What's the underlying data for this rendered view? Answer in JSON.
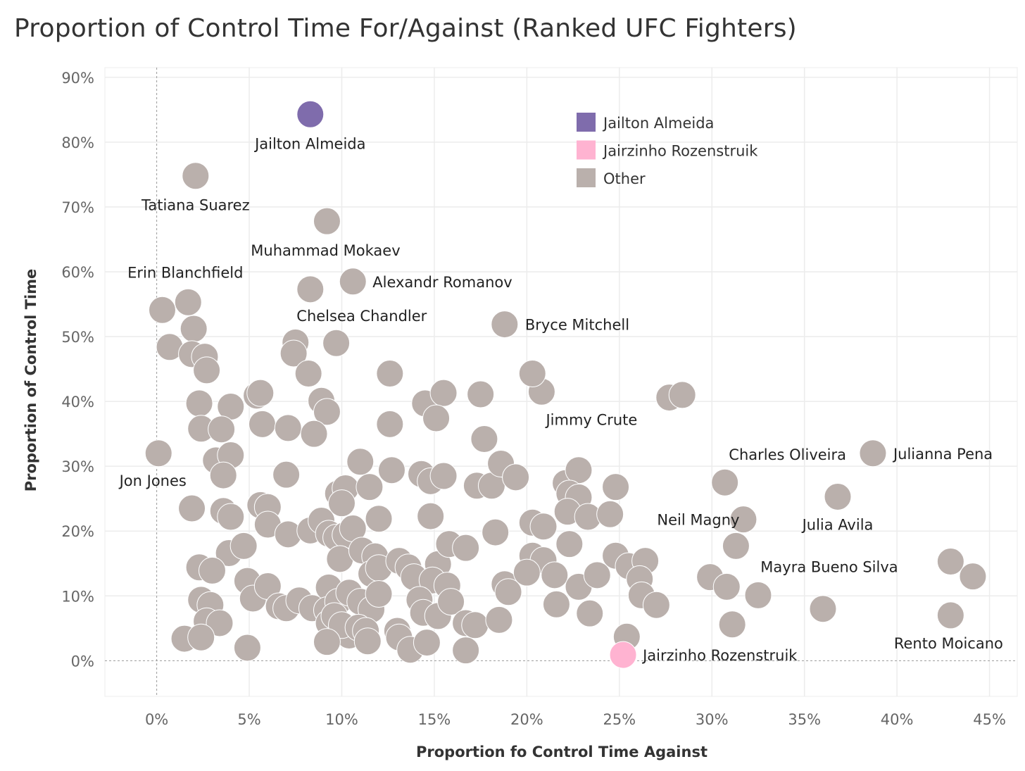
{
  "chart_data": {
    "type": "scatter",
    "title": "Proportion of Control Time For/Against (Ranked UFC Fighters)",
    "xlabel": "Proportion fo Control Time Against",
    "ylabel": "Proportion of Control Time",
    "xlim": [
      -2.8,
      46.5
    ],
    "ylim": [
      -5.5,
      91.5
    ],
    "x_ticks": [
      0,
      5,
      10,
      15,
      20,
      25,
      30,
      35,
      40,
      45
    ],
    "x_tick_labels": [
      "0%",
      "5%",
      "10%",
      "15%",
      "20%",
      "25%",
      "30%",
      "35%",
      "40%",
      "45%"
    ],
    "y_ticks": [
      0,
      10,
      20,
      30,
      40,
      50,
      60,
      70,
      80,
      90
    ],
    "y_tick_labels": [
      "0%",
      "10%",
      "20%",
      "30%",
      "40%",
      "50%",
      "60%",
      "70%",
      "80%",
      "90%"
    ],
    "grid": true,
    "zero_reference_lines": true,
    "legend": {
      "position": "top-right",
      "entries": [
        {
          "label": "Jailton Almeida",
          "color": "#7F6CAC"
        },
        {
          "label": "Jairzinho Rozenstruik",
          "color": "#FFB3D1"
        },
        {
          "label": "Other",
          "color": "#BAB0AC"
        }
      ]
    },
    "series": [
      {
        "name": "Jailton Almeida",
        "color": "#7F6CAC",
        "points": [
          {
            "x": 8.3,
            "y": 84.3,
            "label": "Jailton Almeida"
          }
        ]
      },
      {
        "name": "Jairzinho Rozenstruik",
        "color": "#FFB3D1",
        "points": [
          {
            "x": 25.2,
            "y": 0.9,
            "label": "Jairzinho Rozenstruik"
          }
        ]
      },
      {
        "name": "Other",
        "color": "#BAB0AC",
        "points": [
          {
            "x": 2.1,
            "y": 74.8,
            "label": "Tatiana Suarez"
          },
          {
            "x": 9.2,
            "y": 67.8,
            "label": "Muhammad Mokaev"
          },
          {
            "x": 10.6,
            "y": 58.5,
            "label": "Alexandr Romanov"
          },
          {
            "x": 8.3,
            "y": 57.3,
            "label": "Chelsea Chandler"
          },
          {
            "x": 1.7,
            "y": 55.3,
            "label": "Erin Blanchfield"
          },
          {
            "x": 18.8,
            "y": 51.9,
            "label": "Bryce Mitchell"
          },
          {
            "x": 20.8,
            "y": 41.5,
            "label": "Jimmy Crute"
          },
          {
            "x": 0.1,
            "y": 32.0,
            "label": "Jon Jones"
          },
          {
            "x": 38.7,
            "y": 32.0,
            "label": "Julianna Pena"
          },
          {
            "x": 30.7,
            "y": 27.5,
            "label": "Charles Oliveira"
          },
          {
            "x": 36.8,
            "y": 25.3,
            "label": "Julia Avila"
          },
          {
            "x": 31.7,
            "y": 21.8,
            "label": "Neil Magny"
          },
          {
            "x": 32.5,
            "y": 10.1,
            "label": "Mayra Bueno Silva"
          },
          {
            "x": 42.9,
            "y": 7.0,
            "label": "Rento Moicano"
          },
          {
            "x": 0.3,
            "y": 54.1
          },
          {
            "x": 2.0,
            "y": 51.2
          },
          {
            "x": 0.7,
            "y": 48.4
          },
          {
            "x": 1.9,
            "y": 47.3
          },
          {
            "x": 2.6,
            "y": 46.9
          },
          {
            "x": 2.7,
            "y": 44.8
          },
          {
            "x": 2.3,
            "y": 39.7
          },
          {
            "x": 4.0,
            "y": 39.2
          },
          {
            "x": 2.4,
            "y": 35.8
          },
          {
            "x": 3.5,
            "y": 35.7
          },
          {
            "x": 3.2,
            "y": 30.9
          },
          {
            "x": 4.0,
            "y": 31.7
          },
          {
            "x": 3.6,
            "y": 28.6
          },
          {
            "x": 1.9,
            "y": 23.5
          },
          {
            "x": 3.6,
            "y": 23.1
          },
          {
            "x": 4.0,
            "y": 22.2
          },
          {
            "x": 3.9,
            "y": 16.6
          },
          {
            "x": 4.7,
            "y": 17.7
          },
          {
            "x": 2.3,
            "y": 14.4
          },
          {
            "x": 3.0,
            "y": 13.9
          },
          {
            "x": 2.4,
            "y": 9.4
          },
          {
            "x": 2.9,
            "y": 8.6
          },
          {
            "x": 2.7,
            "y": 6.1
          },
          {
            "x": 3.4,
            "y": 5.8
          },
          {
            "x": 1.5,
            "y": 3.4
          },
          {
            "x": 2.4,
            "y": 3.6
          },
          {
            "x": 4.9,
            "y": 2.0
          },
          {
            "x": 4.9,
            "y": 12.3
          },
          {
            "x": 5.2,
            "y": 9.6
          },
          {
            "x": 6.0,
            "y": 11.5
          },
          {
            "x": 6.6,
            "y": 8.4
          },
          {
            "x": 7.0,
            "y": 8.1
          },
          {
            "x": 7.7,
            "y": 9.3
          },
          {
            "x": 8.4,
            "y": 8.1
          },
          {
            "x": 5.4,
            "y": 40.9
          },
          {
            "x": 5.6,
            "y": 41.3
          },
          {
            "x": 5.7,
            "y": 36.5
          },
          {
            "x": 7.1,
            "y": 35.9
          },
          {
            "x": 7.5,
            "y": 49.1
          },
          {
            "x": 7.4,
            "y": 47.4
          },
          {
            "x": 8.2,
            "y": 44.3
          },
          {
            "x": 8.9,
            "y": 40.1
          },
          {
            "x": 9.2,
            "y": 38.4
          },
          {
            "x": 8.5,
            "y": 35.0
          },
          {
            "x": 9.7,
            "y": 49.0
          },
          {
            "x": 7.0,
            "y": 28.7
          },
          {
            "x": 5.6,
            "y": 24.0
          },
          {
            "x": 6.0,
            "y": 23.7
          },
          {
            "x": 6.0,
            "y": 21.0
          },
          {
            "x": 7.1,
            "y": 19.5
          },
          {
            "x": 8.3,
            "y": 20.1
          },
          {
            "x": 8.9,
            "y": 21.6
          },
          {
            "x": 9.3,
            "y": 19.6
          },
          {
            "x": 9.7,
            "y": 19.0
          },
          {
            "x": 10.2,
            "y": 19.4
          },
          {
            "x": 10.6,
            "y": 20.4
          },
          {
            "x": 9.8,
            "y": 25.8
          },
          {
            "x": 10.2,
            "y": 26.6
          },
          {
            "x": 10.0,
            "y": 24.3
          },
          {
            "x": 11.0,
            "y": 30.7
          },
          {
            "x": 11.5,
            "y": 26.8
          },
          {
            "x": 12.0,
            "y": 21.9
          },
          {
            "x": 9.9,
            "y": 15.7
          },
          {
            "x": 11.1,
            "y": 17.0
          },
          {
            "x": 11.8,
            "y": 16.1
          },
          {
            "x": 11.6,
            "y": 13.4
          },
          {
            "x": 12.0,
            "y": 14.3
          },
          {
            "x": 9.3,
            "y": 11.3
          },
          {
            "x": 9.2,
            "y": 7.8
          },
          {
            "x": 9.8,
            "y": 9.1
          },
          {
            "x": 10.4,
            "y": 10.5
          },
          {
            "x": 11.0,
            "y": 9.1
          },
          {
            "x": 11.6,
            "y": 7.9
          },
          {
            "x": 12.0,
            "y": 10.3
          },
          {
            "x": 9.3,
            "y": 5.8
          },
          {
            "x": 9.6,
            "y": 6.9
          },
          {
            "x": 10.4,
            "y": 3.9
          },
          {
            "x": 10.0,
            "y": 5.5
          },
          {
            "x": 10.9,
            "y": 5.1
          },
          {
            "x": 11.3,
            "y": 4.6
          },
          {
            "x": 9.2,
            "y": 2.9
          },
          {
            "x": 11.4,
            "y": 3.0
          },
          {
            "x": 13.0,
            "y": 4.6
          },
          {
            "x": 13.1,
            "y": 3.6
          },
          {
            "x": 13.7,
            "y": 1.7
          },
          {
            "x": 14.6,
            "y": 2.8
          },
          {
            "x": 12.6,
            "y": 44.3
          },
          {
            "x": 12.6,
            "y": 36.5
          },
          {
            "x": 12.7,
            "y": 29.4
          },
          {
            "x": 14.3,
            "y": 28.8
          },
          {
            "x": 14.8,
            "y": 27.7
          },
          {
            "x": 15.5,
            "y": 28.5
          },
          {
            "x": 14.5,
            "y": 39.7
          },
          {
            "x": 15.5,
            "y": 41.3
          },
          {
            "x": 15.1,
            "y": 37.4
          },
          {
            "x": 14.8,
            "y": 22.3
          },
          {
            "x": 13.1,
            "y": 15.4
          },
          {
            "x": 13.6,
            "y": 14.4
          },
          {
            "x": 13.9,
            "y": 12.9
          },
          {
            "x": 15.2,
            "y": 14.9
          },
          {
            "x": 14.9,
            "y": 12.4
          },
          {
            "x": 15.7,
            "y": 11.6
          },
          {
            "x": 14.2,
            "y": 9.4
          },
          {
            "x": 14.4,
            "y": 7.4
          },
          {
            "x": 15.2,
            "y": 6.9
          },
          {
            "x": 15.9,
            "y": 9.1
          },
          {
            "x": 15.8,
            "y": 18.0
          },
          {
            "x": 16.7,
            "y": 17.4
          },
          {
            "x": 16.7,
            "y": 5.8
          },
          {
            "x": 17.2,
            "y": 5.5
          },
          {
            "x": 16.7,
            "y": 1.6
          },
          {
            "x": 17.5,
            "y": 41.1
          },
          {
            "x": 17.7,
            "y": 34.2
          },
          {
            "x": 17.3,
            "y": 27.0
          },
          {
            "x": 18.1,
            "y": 27.0
          },
          {
            "x": 18.6,
            "y": 30.4
          },
          {
            "x": 19.4,
            "y": 28.3
          },
          {
            "x": 18.3,
            "y": 19.8
          },
          {
            "x": 18.5,
            "y": 6.3
          },
          {
            "x": 18.8,
            "y": 11.8
          },
          {
            "x": 19.0,
            "y": 10.6
          },
          {
            "x": 20.3,
            "y": 44.3
          },
          {
            "x": 20.3,
            "y": 21.3
          },
          {
            "x": 20.9,
            "y": 20.7
          },
          {
            "x": 20.3,
            "y": 16.2
          },
          {
            "x": 20.9,
            "y": 15.5
          },
          {
            "x": 20.0,
            "y": 13.6
          },
          {
            "x": 21.5,
            "y": 13.2
          },
          {
            "x": 21.6,
            "y": 8.7
          },
          {
            "x": 22.1,
            "y": 27.4
          },
          {
            "x": 22.8,
            "y": 29.4
          },
          {
            "x": 22.3,
            "y": 25.8
          },
          {
            "x": 22.8,
            "y": 25.2
          },
          {
            "x": 22.2,
            "y": 23.0
          },
          {
            "x": 23.3,
            "y": 22.2
          },
          {
            "x": 22.3,
            "y": 18.0
          },
          {
            "x": 22.8,
            "y": 11.4
          },
          {
            "x": 23.8,
            "y": 13.2
          },
          {
            "x": 23.4,
            "y": 7.3
          },
          {
            "x": 24.8,
            "y": 26.8
          },
          {
            "x": 24.5,
            "y": 22.6
          },
          {
            "x": 24.8,
            "y": 16.2
          },
          {
            "x": 25.5,
            "y": 14.6
          },
          {
            "x": 26.4,
            "y": 15.4
          },
          {
            "x": 26.1,
            "y": 12.6
          },
          {
            "x": 26.2,
            "y": 10.1
          },
          {
            "x": 27.0,
            "y": 8.6
          },
          {
            "x": 25.4,
            "y": 3.7
          },
          {
            "x": 27.7,
            "y": 40.6
          },
          {
            "x": 28.4,
            "y": 41.0
          },
          {
            "x": 29.9,
            "y": 12.9
          },
          {
            "x": 30.8,
            "y": 11.4
          },
          {
            "x": 31.3,
            "y": 17.7
          },
          {
            "x": 31.1,
            "y": 5.6
          },
          {
            "x": 36.0,
            "y": 8.0
          },
          {
            "x": 42.9,
            "y": 15.3
          },
          {
            "x": 44.1,
            "y": 13.0
          }
        ]
      }
    ]
  }
}
